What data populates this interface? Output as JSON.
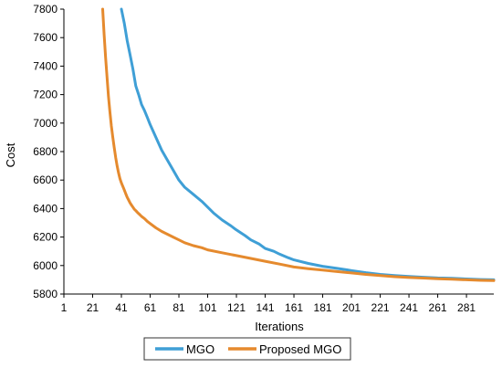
{
  "chart_data": {
    "type": "line",
    "xlabel": "Iterations",
    "ylabel": "Cost",
    "xlim": [
      1,
      300
    ],
    "ylim": [
      5800,
      7800
    ],
    "x_ticks": [
      1,
      21,
      41,
      61,
      81,
      101,
      121,
      141,
      161,
      181,
      201,
      221,
      241,
      261,
      281
    ],
    "y_ticks": [
      5800,
      6000,
      6200,
      6400,
      6600,
      6800,
      7000,
      7200,
      7400,
      7600,
      7800
    ],
    "grid": false,
    "legend_position": "bottom-center",
    "series": [
      {
        "name": "MGO",
        "color": "#3f9fd6",
        "x": [
          41,
          43,
          45,
          47,
          49,
          51,
          53,
          55,
          57,
          59,
          61,
          65,
          69,
          73,
          77,
          81,
          85,
          91,
          97,
          101,
          105,
          111,
          117,
          121,
          127,
          131,
          137,
          141,
          147,
          151,
          157,
          161,
          171,
          181,
          191,
          201,
          211,
          221,
          231,
          241,
          251,
          261,
          271,
          281,
          291,
          300
        ],
        "y": [
          7800,
          7700,
          7580,
          7480,
          7380,
          7260,
          7200,
          7130,
          7090,
          7040,
          6990,
          6900,
          6810,
          6740,
          6670,
          6600,
          6550,
          6500,
          6450,
          6410,
          6370,
          6320,
          6280,
          6250,
          6210,
          6180,
          6150,
          6120,
          6100,
          6080,
          6055,
          6040,
          6015,
          5995,
          5980,
          5965,
          5950,
          5938,
          5930,
          5924,
          5918,
          5913,
          5910,
          5906,
          5902,
          5900
        ]
      },
      {
        "name": "Proposed MGO",
        "color": "#e58a2e",
        "x": [
          28,
          29,
          30,
          31,
          32,
          33,
          34,
          35,
          36,
          37,
          38,
          39,
          40,
          41,
          42,
          43,
          44,
          45,
          46,
          47,
          48,
          49,
          50,
          51,
          52,
          53,
          54,
          55,
          57,
          59,
          61,
          65,
          69,
          73,
          77,
          81,
          85,
          91,
          97,
          101,
          111,
          121,
          131,
          141,
          151,
          161,
          171,
          181,
          191,
          201,
          211,
          221,
          231,
          241,
          251,
          261,
          271,
          281,
          291,
          300
        ],
        "y": [
          7800,
          7620,
          7460,
          7320,
          7190,
          7080,
          6980,
          6900,
          6830,
          6760,
          6700,
          6650,
          6610,
          6580,
          6555,
          6530,
          6505,
          6480,
          6460,
          6440,
          6425,
          6410,
          6395,
          6385,
          6375,
          6365,
          6355,
          6345,
          6330,
          6310,
          6295,
          6265,
          6240,
          6220,
          6200,
          6180,
          6160,
          6140,
          6125,
          6110,
          6090,
          6070,
          6050,
          6030,
          6010,
          5990,
          5978,
          5968,
          5958,
          5948,
          5938,
          5930,
          5922,
          5916,
          5912,
          5908,
          5904,
          5900,
          5896,
          5894
        ]
      }
    ]
  }
}
